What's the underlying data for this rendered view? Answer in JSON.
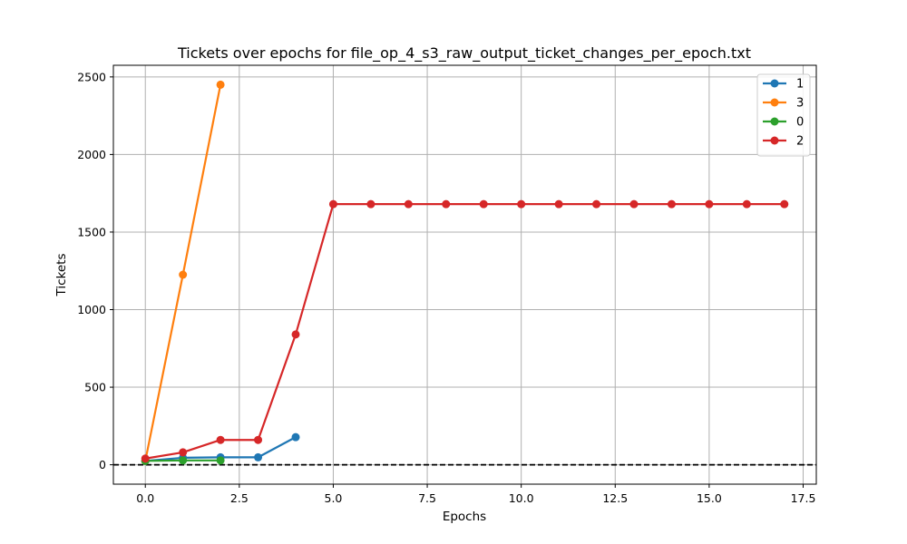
{
  "chart_data": {
    "type": "line",
    "title": "Tickets over epochs for file_op_4_s3_raw_output_ticket_changes_per_epoch.txt",
    "xlabel": "Epochs",
    "ylabel": "Tickets",
    "xlim": [
      -0.85,
      17.85
    ],
    "ylim": [
      -125,
      2575
    ],
    "xticks": [
      0.0,
      2.5,
      5.0,
      7.5,
      10.0,
      12.5,
      15.0,
      17.5
    ],
    "xtick_labels": [
      "0.0",
      "2.5",
      "5.0",
      "7.5",
      "10.0",
      "12.5",
      "15.0",
      "17.5"
    ],
    "yticks": [
      0,
      500,
      1000,
      1500,
      2000,
      2500
    ],
    "ytick_labels": [
      "0",
      "500",
      "1000",
      "1500",
      "2000",
      "2500"
    ],
    "grid": true,
    "legend_position": "top-right",
    "reference_line": {
      "y": 0,
      "style": "dashed",
      "color": "#000000"
    },
    "series": [
      {
        "name": "1",
        "color": "#1f77b4",
        "x": [
          0,
          1,
          2,
          3,
          4
        ],
        "y": [
          25,
          45,
          48,
          48,
          178
        ]
      },
      {
        "name": "3",
        "color": "#ff7f0e",
        "x": [
          0,
          1,
          2
        ],
        "y": [
          25,
          1225,
          2450
        ]
      },
      {
        "name": "0",
        "color": "#2ca02c",
        "x": [
          0,
          1,
          2
        ],
        "y": [
          25,
          28,
          28
        ]
      },
      {
        "name": "2",
        "color": "#d62728",
        "x": [
          0,
          1,
          2,
          3,
          4,
          5,
          6,
          7,
          8,
          9,
          10,
          11,
          12,
          13,
          14,
          15,
          16,
          17
        ],
        "y": [
          40,
          80,
          160,
          160,
          840,
          1680,
          1680,
          1680,
          1680,
          1680,
          1680,
          1680,
          1680,
          1680,
          1680,
          1680,
          1680,
          1680
        ]
      }
    ]
  }
}
